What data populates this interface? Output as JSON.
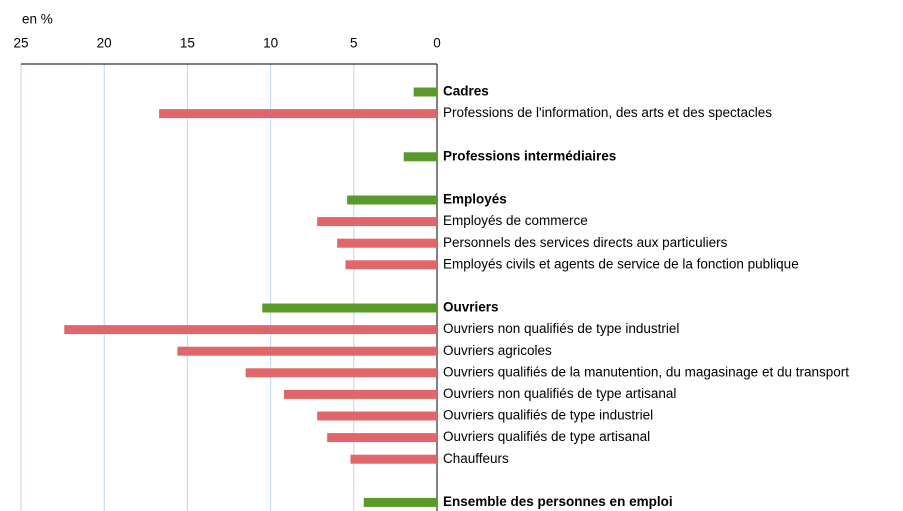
{
  "chart_data": {
    "type": "bar",
    "orientation": "horizontal",
    "x_reversed": true,
    "xlabel": "en %",
    "categories": [
      "Cadres",
      "Professions de l'information, des arts et des spectacles",
      null,
      "Professions intermédiaires",
      null,
      "Employés",
      "Employés de commerce",
      "Personnels des services directs aux particuliers",
      "Employés civils et agents de service de la fonction publique",
      null,
      "Ouvriers",
      "Ouvriers non qualifiés de type industriel",
      "Ouvriers agricoles",
      "Ouvriers qualifiés de la manutention, du magasinage et du transport",
      "Ouvriers non qualifiés de type artisanal",
      "Ouvriers qualifiés de type industriel",
      "Ouvriers qualifiés de type artisanal",
      "Chauffeurs",
      null,
      "Ensemble des personnes en emploi"
    ],
    "values": [
      1.4,
      16.7,
      null,
      2.0,
      null,
      5.4,
      7.2,
      6.0,
      5.5,
      null,
      10.5,
      22.4,
      15.6,
      11.5,
      9.2,
      7.2,
      6.6,
      5.2,
      null,
      4.4
    ],
    "colors": [
      "#5a9a2a",
      "#e06669",
      null,
      "#5a9a2a",
      null,
      "#5a9a2a",
      "#e06669",
      "#e06669",
      "#e06669",
      null,
      "#5a9a2a",
      "#e06669",
      "#e06669",
      "#e06669",
      "#e06669",
      "#e06669",
      "#e06669",
      "#e06669",
      null,
      "#5a9a2a"
    ],
    "xlim": [
      0,
      25
    ],
    "xticks": [
      0,
      5,
      10,
      15,
      20,
      25
    ],
    "grid": true
  }
}
